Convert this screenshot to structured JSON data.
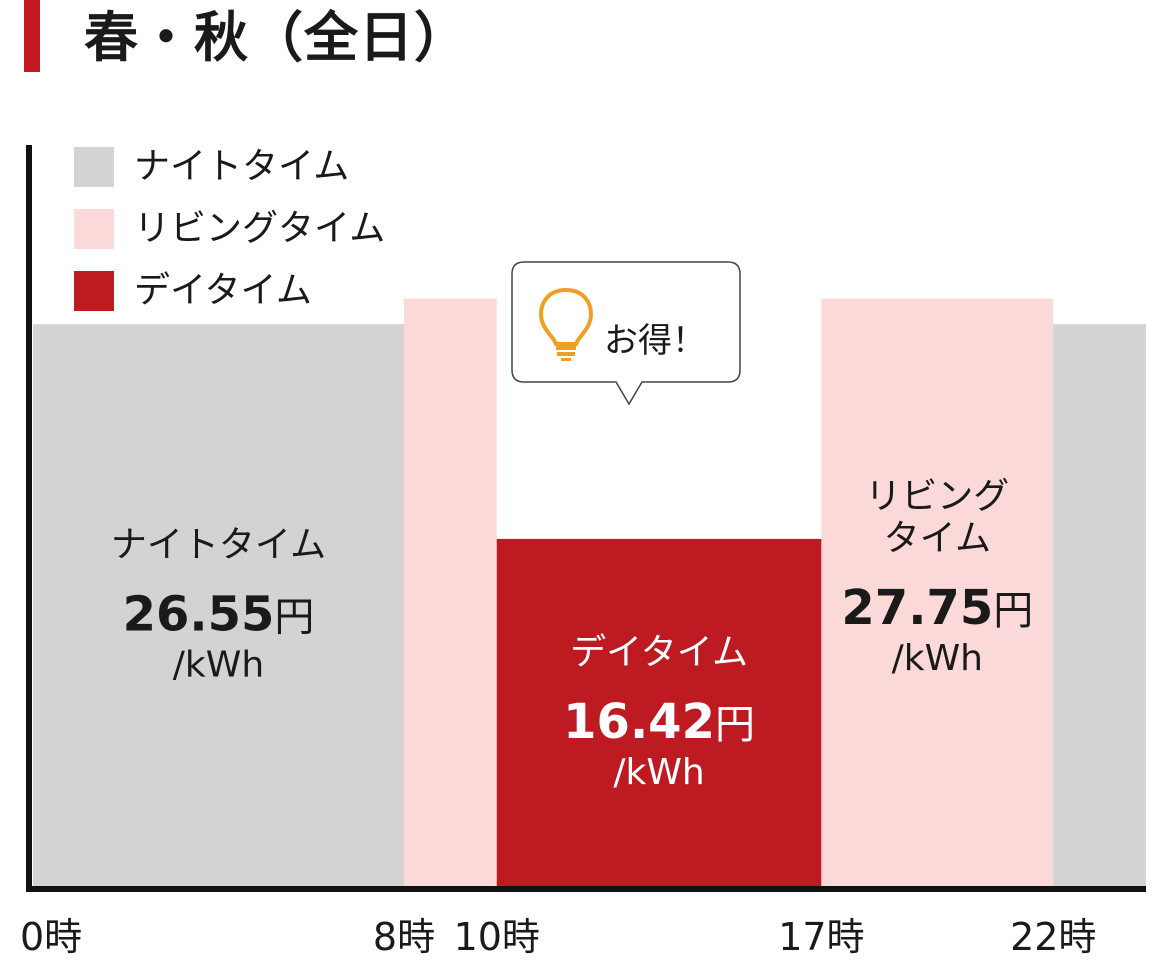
{
  "title": "春・秋（全日）",
  "colors": {
    "accent": "#c1191f",
    "night": "#d3d3d3",
    "living": "#fcd9d9",
    "day": "#bd1a21",
    "axis": "#111111",
    "bulb": "#f0a020"
  },
  "legend": [
    {
      "name": "ナイトタイム",
      "color": "#d3d3d3"
    },
    {
      "name": "リビングタイム",
      "color": "#fcd9d9"
    },
    {
      "name": "デイタイム",
      "color": "#bd1a21"
    }
  ],
  "callout": {
    "icon": "lightbulb-icon",
    "text": "お得！"
  },
  "chart_data": {
    "type": "bar",
    "title": "春・秋（全日）",
    "x_range": [
      0,
      24
    ],
    "y_range": [
      0,
      35
    ],
    "x_ticks": [
      {
        "value": 0,
        "label": "0時"
      },
      {
        "value": 8,
        "label": "8時"
      },
      {
        "value": 10,
        "label": "10時"
      },
      {
        "value": 17,
        "label": "17時"
      },
      {
        "value": 22,
        "label": "22時"
      }
    ],
    "segments": [
      {
        "series": "ナイトタイム",
        "start": 0,
        "end": 8,
        "value": 26.55
      },
      {
        "series": "リビングタイム",
        "start": 8,
        "end": 10,
        "value": 27.75
      },
      {
        "series": "デイタイム",
        "start": 10,
        "end": 17,
        "value": 16.42
      },
      {
        "series": "リビングタイム",
        "start": 17,
        "end": 22,
        "value": 27.75
      },
      {
        "series": "ナイトタイム",
        "start": 22,
        "end": 24,
        "value": 26.55
      }
    ],
    "labels": [
      {
        "segment": 0,
        "name_lines": [
          "ナイトタイム"
        ],
        "price": "26.55",
        "currency": "円",
        "unit": "/kWh",
        "color": "#1a1a1a"
      },
      {
        "segment": 2,
        "name_lines": [
          "デイタイム"
        ],
        "price": "16.42",
        "currency": "円",
        "unit": "/kWh",
        "color": "#ffffff"
      },
      {
        "segment": 3,
        "name_lines": [
          "リビング",
          "タイム"
        ],
        "price": "27.75",
        "currency": "円",
        "unit": "/kWh",
        "color": "#1a1a1a"
      }
    ],
    "grid": false,
    "legend_position": "top-left"
  }
}
